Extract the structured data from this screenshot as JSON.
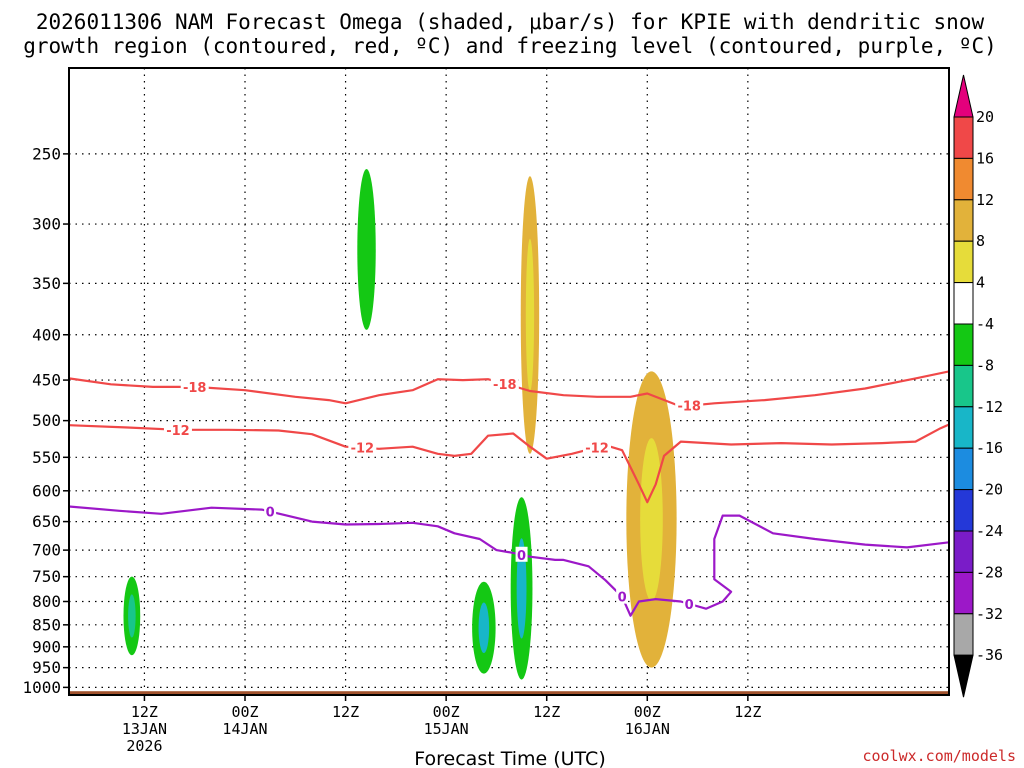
{
  "chart_data": {
    "type": "time-height contour",
    "title_line1": "2026011306 NAM Forecast Omega (shaded, μbar/s) for KPIE with dendritic snow",
    "title_line2": "growth region (contoured, red, ºC) and freezing level (contoured, purple, ºC)",
    "xlabel": "Forecast Time (UTC)",
    "credit": "coolwx.com/models",
    "y_axis": {
      "unit": "hPa",
      "range": [
        200,
        1020
      ],
      "ticks": [
        250,
        300,
        350,
        400,
        450,
        500,
        550,
        600,
        650,
        700,
        750,
        800,
        850,
        900,
        950,
        1000
      ]
    },
    "x_axis": {
      "unit": "forecast hour",
      "range": [
        -3,
        102
      ],
      "ticks": [
        {
          "hour": 6,
          "line1": "12Z",
          "line2": "13JAN",
          "line3": "2026"
        },
        {
          "hour": 18,
          "line1": "00Z",
          "line2": "14JAN",
          "line3": ""
        },
        {
          "hour": 30,
          "line1": "12Z",
          "line2": "",
          "line3": ""
        },
        {
          "hour": 42,
          "line1": "00Z",
          "line2": "15JAN",
          "line3": ""
        },
        {
          "hour": 54,
          "line1": "12Z",
          "line2": "",
          "line3": ""
        },
        {
          "hour": 66,
          "line1": "00Z",
          "line2": "16JAN",
          "line3": ""
        },
        {
          "hour": 78,
          "line1": "12Z",
          "line2": "",
          "line3": ""
        }
      ]
    },
    "colorbar": {
      "labels": [
        "20",
        "16",
        "12",
        "8",
        "4",
        "-4",
        "-8",
        "-12",
        "-16",
        "-20",
        "-24",
        "-28",
        "-32",
        "-36"
      ],
      "colors": [
        "#e4007c",
        "#f04848",
        "#f08a30",
        "#e2b23a",
        "#e6dc3a",
        "#ffffff",
        "#14c814",
        "#18c68a",
        "#18b6c8",
        "#1c8ce0",
        "#2438d8",
        "#7a1cc8",
        "#9c18c8",
        "#a8a8a8",
        "#000000"
      ]
    },
    "contours": [
      {
        "name": "dgz-minus18",
        "label": "-18",
        "color": "#f04848",
        "points": [
          [
            -3,
            448
          ],
          [
            2,
            455
          ],
          [
            7,
            458
          ],
          [
            12,
            458
          ],
          [
            18,
            462
          ],
          [
            24,
            470
          ],
          [
            28,
            474
          ],
          [
            30,
            478
          ],
          [
            34,
            468
          ],
          [
            38,
            462
          ],
          [
            41,
            449
          ],
          [
            44,
            450
          ],
          [
            47,
            449
          ],
          [
            50,
            457
          ],
          [
            52,
            463
          ],
          [
            56,
            468
          ],
          [
            60,
            470
          ],
          [
            64,
            470
          ],
          [
            66,
            466
          ],
          [
            70,
            482
          ],
          [
            74,
            478
          ],
          [
            80,
            474
          ],
          [
            86,
            468
          ],
          [
            92,
            460
          ],
          [
            98,
            448
          ],
          [
            102,
            440
          ]
        ],
        "label_hours": [
          12,
          49,
          71
        ]
      },
      {
        "name": "dgz-minus12",
        "label": "-12",
        "color": "#f04848",
        "points": [
          [
            -3,
            506
          ],
          [
            4,
            509
          ],
          [
            10,
            512
          ],
          [
            16,
            512
          ],
          [
            22,
            513
          ],
          [
            26,
            518
          ],
          [
            30,
            535
          ],
          [
            34,
            538
          ],
          [
            38,
            535
          ],
          [
            41,
            545
          ],
          [
            43,
            548
          ],
          [
            45,
            545
          ],
          [
            47,
            520
          ],
          [
            50,
            517
          ],
          [
            52,
            535
          ],
          [
            54,
            552
          ],
          [
            57,
            545
          ],
          [
            61,
            533
          ],
          [
            63,
            540
          ],
          [
            65,
            590
          ],
          [
            66,
            618
          ],
          [
            67,
            590
          ],
          [
            68,
            548
          ],
          [
            70,
            528
          ],
          [
            76,
            532
          ],
          [
            82,
            530
          ],
          [
            88,
            532
          ],
          [
            94,
            530
          ],
          [
            98,
            528
          ],
          [
            101,
            510
          ],
          [
            102,
            505
          ]
        ],
        "label_hours": [
          10,
          32,
          60
        ]
      },
      {
        "name": "freezing-level-0",
        "label": "0",
        "color": "#9c18c8",
        "points": [
          [
            -3,
            625
          ],
          [
            3,
            632
          ],
          [
            8,
            637
          ],
          [
            14,
            627
          ],
          [
            20,
            630
          ],
          [
            26,
            650
          ],
          [
            30,
            655
          ],
          [
            34,
            654
          ],
          [
            38,
            652
          ],
          [
            41,
            658
          ],
          [
            43,
            670
          ],
          [
            46,
            680
          ],
          [
            48,
            700
          ],
          [
            50,
            705
          ],
          [
            52,
            712
          ],
          [
            55,
            718
          ],
          [
            56,
            718
          ],
          [
            59,
            730
          ],
          [
            61,
            757
          ],
          [
            63,
            790
          ],
          [
            64,
            830
          ],
          [
            65,
            800
          ],
          [
            67,
            795
          ],
          [
            70,
            800
          ],
          [
            73,
            815
          ],
          [
            75,
            800
          ],
          [
            76,
            780
          ],
          [
            74,
            755
          ],
          [
            74,
            680
          ],
          [
            75,
            640
          ],
          [
            77,
            640
          ],
          [
            81,
            670
          ],
          [
            86,
            680
          ],
          [
            92,
            690
          ],
          [
            97,
            695
          ],
          [
            102,
            686
          ]
        ],
        "label_hours": [
          21,
          51,
          63,
          71
        ]
      }
    ],
    "omega_regions": [
      {
        "name": "rising-13jan-low",
        "value_range": [
          -12,
          -8
        ],
        "center_hour": 4.5,
        "p_top": 750,
        "p_bottom": 920,
        "half_width_hours": 1.0
      },
      {
        "name": "rising-14jan-upper",
        "value_range": [
          -8,
          -4
        ],
        "center_hour": 32.5,
        "p_top": 260,
        "p_bottom": 395,
        "half_width_hours": 1.1
      },
      {
        "name": "rising-15jan-low",
        "value_range": [
          -16,
          -8
        ],
        "center_hour": 46.5,
        "p_top": 760,
        "p_bottom": 965,
        "half_width_hours": 1.4
      },
      {
        "name": "rising-15jan-mid",
        "value_range": [
          -16,
          -8
        ],
        "center_hour": 51.0,
        "p_top": 610,
        "p_bottom": 980,
        "half_width_hours": 1.3
      },
      {
        "name": "sinking-15jan-upper",
        "value_range": [
          4,
          12
        ],
        "center_hour": 52.0,
        "p_top": 265,
        "p_bottom": 545,
        "half_width_hours": 1.1
      },
      {
        "name": "sinking-16jan-low",
        "value_range": [
          4,
          12
        ],
        "center_hour": 66.5,
        "p_top": 440,
        "p_bottom": 950,
        "half_width_hours": 3.0
      }
    ],
    "surface": {
      "color": "#a0522d",
      "top_pressure": 1010
    }
  }
}
